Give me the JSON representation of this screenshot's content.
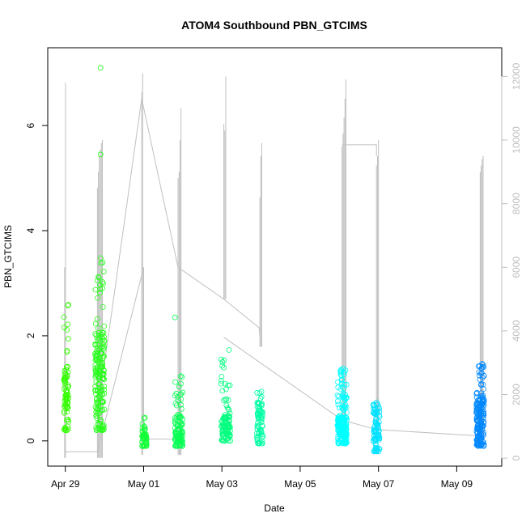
{
  "chart_data": {
    "type": "scatter",
    "title": "ATOM4 Southbound PBN_GTCIMS",
    "xlabel": "Date",
    "ylabel": "PBN_GTCIMS",
    "x_ticks": [
      "Apr 29",
      "May 01",
      "May 03",
      "May 05",
      "May 07",
      "May 09"
    ],
    "x_tick_days": [
      0,
      2,
      4,
      6,
      8,
      10
    ],
    "xlim_days": [
      -0.45,
      11.15
    ],
    "ylim": [
      -0.48,
      7.48
    ],
    "y_ticks": [
      0,
      2,
      4,
      6
    ],
    "y2lim": [
      -250,
      12900
    ],
    "y2_ticks": [
      0,
      2000,
      4000,
      6000,
      8000,
      10000,
      12000
    ],
    "grid": false,
    "colors": {
      "line": "#c0c0c0",
      "tick_right": "#bebebe",
      "gradient": [
        "#33ff00",
        "#00ff66",
        "#00ffff",
        "#0088ff"
      ]
    },
    "clusters": [
      {
        "day": 0.02,
        "spread": 0.06,
        "n": 80,
        "lo": 0.2,
        "hi": 2.85,
        "mean": 0.9,
        "outliers": []
      },
      {
        "day": 0.88,
        "spread": 0.12,
        "n": 180,
        "lo": 0.2,
        "hi": 3.7,
        "mean": 1.3,
        "outliers": [
          [
            0.9,
            5.45
          ],
          [
            0.9,
            7.1
          ]
        ]
      },
      {
        "day": 2.02,
        "spread": 0.06,
        "n": 60,
        "lo": -0.1,
        "hi": 0.48,
        "mean": 0.12,
        "outliers": []
      },
      {
        "day": 2.9,
        "spread": 0.1,
        "n": 110,
        "lo": -0.1,
        "hi": 1.45,
        "mean": 0.25,
        "outliers": [
          [
            2.8,
            2.35
          ]
        ]
      },
      {
        "day": 4.1,
        "spread": 0.12,
        "n": 100,
        "lo": 0.0,
        "hi": 1.6,
        "mean": 0.28,
        "outliers": [
          [
            4.18,
            1.73
          ]
        ]
      },
      {
        "day": 4.97,
        "spread": 0.08,
        "n": 80,
        "lo": -0.05,
        "hi": 0.95,
        "mean": 0.45,
        "outliers": []
      },
      {
        "day": 7.07,
        "spread": 0.12,
        "n": 200,
        "lo": -0.05,
        "hi": 1.45,
        "mean": 0.25,
        "outliers": []
      },
      {
        "day": 7.95,
        "spread": 0.08,
        "n": 90,
        "lo": -0.2,
        "hi": 0.8,
        "mean": 0.35,
        "outliers": []
      },
      {
        "day": 10.6,
        "spread": 0.1,
        "n": 180,
        "lo": -0.1,
        "hi": 1.5,
        "mean": 0.45,
        "outliers": []
      }
    ],
    "secondary_line": [
      {
        "day": -0.02,
        "base": 10,
        "peaks": [
          6000,
          11800
        ]
      },
      {
        "day": 0.82,
        "base": 10,
        "peaks": [
          8500,
          9000,
          9500,
          9700,
          9900,
          10000
        ]
      },
      {
        "day": 1.95,
        "base": 100,
        "peaks": [
          11500,
          12100
        ]
      },
      {
        "day": 2.88,
        "base": 100,
        "peaks": [
          8800,
          9000,
          10000,
          11000
        ]
      },
      {
        "day": 4.05,
        "base": 5000,
        "peaks": [
          10500,
          10300,
          12000
        ]
      },
      {
        "day": 4.97,
        "base": 3500,
        "peaks": [
          8200,
          9500,
          9900
        ]
      },
      {
        "day": 7.07,
        "base": 1000,
        "peaks": [
          9800,
          10200,
          10700,
          11300,
          11900
        ]
      },
      {
        "day": 7.95,
        "base": 900,
        "peaks": [
          9200,
          9500,
          10000
        ]
      },
      {
        "day": 10.6,
        "base": 600,
        "peaks": [
          9000,
          9200,
          9400,
          9500
        ]
      }
    ],
    "connectors": [
      [
        [
          0.0,
          200
        ],
        [
          0.82,
          200
        ],
        [
          2.0,
          6000
        ],
        [
          2.0,
          600
        ],
        [
          2.9,
          600
        ]
      ],
      [
        [
          0.82,
          1400
        ],
        [
          1.95,
          11300
        ],
        [
          2.88,
          6000
        ],
        [
          4.05,
          5000
        ],
        [
          4.95,
          4100
        ],
        [
          4.97,
          3800
        ]
      ],
      [
        [
          4.05,
          3800
        ],
        [
          7.07,
          1200
        ],
        [
          7.95,
          900
        ],
        [
          10.6,
          700
        ]
      ],
      [
        [
          7.07,
          9850
        ],
        [
          7.95,
          9850
        ],
        [
          7.95,
          9500
        ]
      ]
    ]
  }
}
